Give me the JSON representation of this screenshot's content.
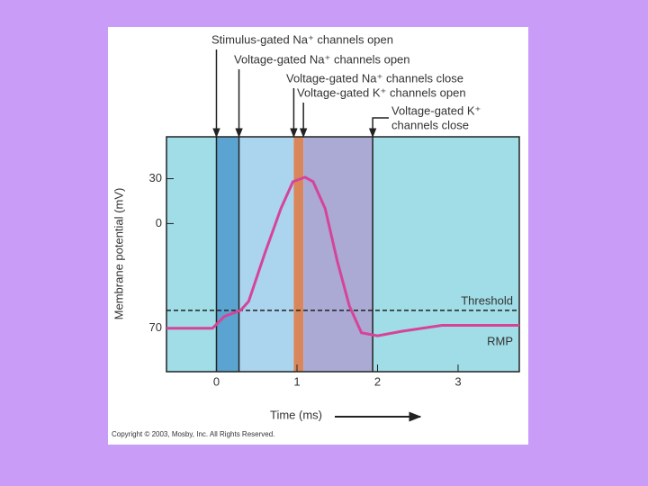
{
  "chart_data": {
    "type": "line",
    "x_label": "Time (ms)",
    "y_label": "Membrane potential (mV)",
    "xlim": [
      -0.62,
      3.76
    ],
    "xticks": [
      0,
      1,
      2,
      3
    ],
    "ylim": [
      -99,
      58
    ],
    "yticks": [
      30,
      0,
      {
        "value": -70,
        "label": "70"
      }
    ],
    "series": [
      {
        "color": "#d6449a",
        "x": [
          -0.62,
          -0.05,
          0.1,
          0.3,
          0.4,
          0.6,
          0.8,
          0.95,
          1.1,
          1.2,
          1.35,
          1.5,
          1.65,
          1.8,
          2.0,
          2.3,
          2.8,
          3.2,
          3.76
        ],
        "values": [
          -70,
          -70,
          -62,
          -58,
          -52,
          -20,
          10,
          28,
          31,
          28,
          10,
          -25,
          -55,
          -73,
          -75,
          -72,
          -68,
          -68,
          -68
        ]
      }
    ],
    "regions": [
      {
        "start": -0.62,
        "end": 0,
        "color": "#a0dde6"
      },
      {
        "start": 0,
        "end": 0.28,
        "color": "#5ba3d0"
      },
      {
        "start": 0.28,
        "end": 0.96,
        "color": "#abd4ee"
      },
      {
        "start": 0.96,
        "end": 1.08,
        "color": "#d9875a"
      },
      {
        "start": 1.08,
        "end": 1.94,
        "color": "#aaaad4"
      },
      {
        "start": 1.94,
        "end": 3.76,
        "color": "#a0dde6"
      }
    ],
    "threshold": {
      "value": -58,
      "label": "Threshold"
    },
    "rmp_label": "RMP",
    "annotations": [
      {
        "text": [
          "Stimulus-gated Na⁺ channels open"
        ],
        "x": 0
      },
      {
        "text": [
          "Voltage-gated Na⁺ channels open"
        ],
        "x": 0.28
      },
      {
        "text": [
          "Voltage-gated Na⁺ channels close"
        ],
        "x": 0.96
      },
      {
        "text": [
          "Voltage-gated K⁺ channels open"
        ],
        "x": 1.08
      },
      {
        "text": [
          "Voltage-gated K⁺",
          "channels close"
        ],
        "x": 1.94
      }
    ],
    "copyright": "Copyright © 2003, Mosby, Inc. All Rights Reserved."
  }
}
